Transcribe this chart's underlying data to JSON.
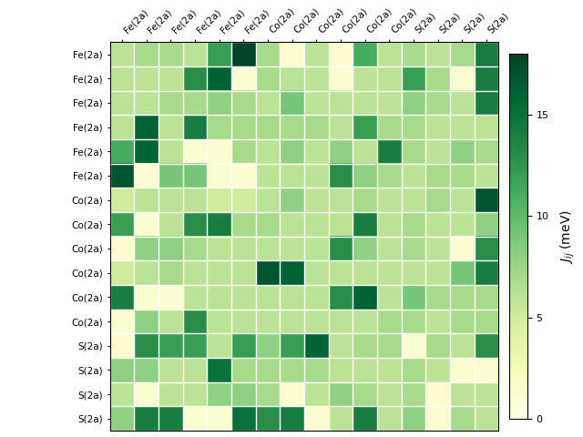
{
  "labels": [
    "Fe(2a)",
    "Fe(2a)",
    "Fe(2a)",
    "Fe(2a)",
    "Fe(2a)",
    "Fe(2a)",
    "Co(2a)",
    "Co(2a)",
    "Co(2a)",
    "Co(2a)",
    "Co(2a)",
    "Co(2a)",
    "S(2a)",
    "S(2a)",
    "S(2a)",
    "S(2a)"
  ],
  "matrix": [
    [
      6,
      7,
      7,
      6,
      12,
      18,
      7,
      1,
      6,
      1,
      11,
      6,
      7,
      6,
      7,
      14
    ],
    [
      6,
      6,
      6,
      13,
      16,
      1,
      7,
      6,
      6,
      1,
      6,
      6,
      12,
      7,
      1,
      14
    ],
    [
      6,
      6,
      7,
      7,
      8,
      7,
      6,
      9,
      6,
      6,
      6,
      6,
      8,
      7,
      6,
      14
    ],
    [
      6,
      16,
      6,
      14,
      7,
      7,
      7,
      7,
      7,
      6,
      12,
      7,
      7,
      6,
      6,
      6
    ],
    [
      11,
      16,
      6,
      1,
      1,
      7,
      6,
      8,
      6,
      8,
      6,
      14,
      7,
      6,
      8,
      7
    ],
    [
      17,
      1,
      9,
      9,
      1,
      1,
      6,
      6,
      6,
      13,
      8,
      7,
      6,
      7,
      7,
      6
    ],
    [
      5,
      6,
      6,
      6,
      5,
      5,
      6,
      8,
      6,
      6,
      7,
      6,
      6,
      7,
      6,
      17
    ],
    [
      12,
      1,
      6,
      13,
      14,
      7,
      7,
      6,
      6,
      6,
      14,
      6,
      7,
      6,
      6,
      8
    ],
    [
      1,
      8,
      8,
      7,
      6,
      6,
      6,
      6,
      6,
      13,
      8,
      6,
      7,
      6,
      1,
      13
    ],
    [
      5,
      6,
      7,
      6,
      6,
      6,
      17,
      16,
      6,
      6,
      6,
      6,
      6,
      6,
      9,
      14
    ],
    [
      14,
      1,
      1,
      6,
      6,
      6,
      6,
      6,
      6,
      13,
      16,
      6,
      9,
      7,
      7,
      7
    ],
    [
      1,
      8,
      6,
      13,
      6,
      6,
      6,
      6,
      6,
      6,
      6,
      7,
      7,
      6,
      7,
      7
    ],
    [
      1,
      13,
      12,
      12,
      6,
      12,
      8,
      12,
      16,
      6,
      7,
      7,
      1,
      7,
      6,
      13
    ],
    [
      8,
      8,
      6,
      6,
      15,
      7,
      7,
      7,
      7,
      6,
      6,
      6,
      7,
      6,
      1,
      1
    ],
    [
      6,
      1,
      6,
      6,
      8,
      8,
      7,
      1,
      6,
      8,
      7,
      6,
      7,
      1,
      6,
      6
    ],
    [
      8,
      14,
      14,
      1,
      1,
      15,
      13,
      14,
      1,
      6,
      14,
      6,
      8,
      1,
      7,
      6
    ]
  ],
  "vmin": 0,
  "vmax": 18,
  "colorbar_label": "$J_{ij}$ (meV)",
  "colorbar_ticks": [
    0,
    5,
    10,
    15
  ],
  "cmap": "YlGn",
  "figsize": [
    6.4,
    4.8
  ],
  "dpi": 100
}
